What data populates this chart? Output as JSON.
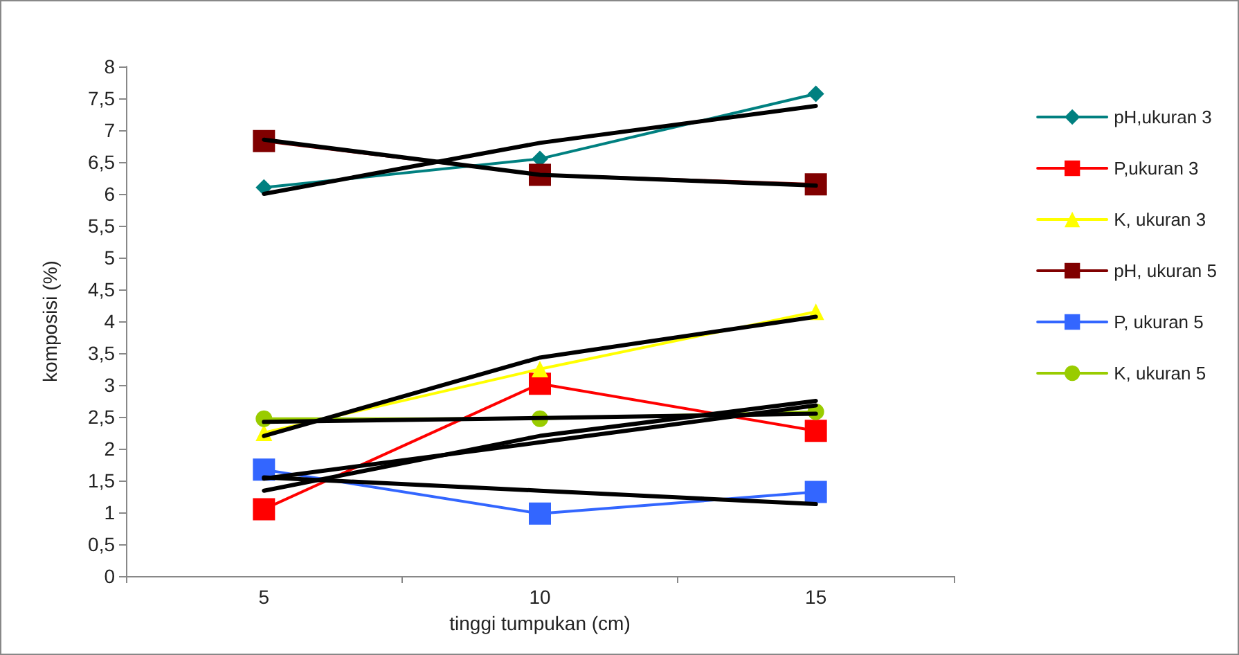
{
  "chart_data": {
    "type": "line",
    "xlabel": "tinggi tumpukan (cm)",
    "ylabel": "komposisi (%)",
    "categories": [
      "5",
      "10",
      "15"
    ],
    "ylim": [
      0,
      8
    ],
    "yticks": [
      0,
      {
        "value": 0.5,
        "label": "0,5"
      },
      1,
      {
        "value": 1.5,
        "label": "1,5"
      },
      2,
      {
        "value": 2.5,
        "label": "2,5"
      },
      3,
      {
        "value": 3.5,
        "label": "3,5"
      },
      4,
      {
        "value": 4.5,
        "label": "4,5"
      },
      5,
      {
        "value": 5.5,
        "label": "5,5"
      },
      6,
      {
        "value": 6.5,
        "label": "6,5"
      },
      7,
      {
        "value": 7.5,
        "label": "7,5"
      },
      8
    ],
    "grid": false,
    "legend": "right",
    "series": [
      {
        "name": "pH,ukuran 3",
        "color": "#008080",
        "marker": "diamond",
        "values": [
          6.1,
          6.55,
          7.57
        ]
      },
      {
        "name": "P,ukuran 3",
        "color": "#ff0000",
        "marker": "square",
        "values": [
          1.05,
          3.02,
          2.28
        ]
      },
      {
        "name": "K, ukuran 3",
        "color": "#ffff00",
        "marker": "triangle",
        "values": [
          2.25,
          3.25,
          4.15
        ]
      },
      {
        "name": "pH, ukuran 5",
        "color": "#800000",
        "marker": "square",
        "values": [
          6.83,
          6.3,
          6.15
        ]
      },
      {
        "name": "P, ukuran 5",
        "color": "#3366ff",
        "marker": "square",
        "values": [
          1.67,
          0.98,
          1.32
        ]
      },
      {
        "name": "K, ukuran 5",
        "color": "#99cc00",
        "marker": "circle",
        "values": [
          2.47,
          2.47,
          2.58
        ]
      },
      {
        "color": "#000000",
        "marker": "none",
        "values": [
          6.0,
          6.8,
          7.38
        ]
      },
      {
        "color": "#000000",
        "marker": "none",
        "values": [
          6.85,
          6.3,
          6.13
        ]
      },
      {
        "color": "#000000",
        "marker": "none",
        "values": [
          2.2,
          3.43,
          4.07
        ]
      },
      {
        "color": "#000000",
        "marker": "none",
        "values": [
          2.42,
          2.48,
          2.55
        ]
      },
      {
        "color": "#000000",
        "marker": "none",
        "values": [
          1.34,
          2.2,
          2.75
        ]
      },
      {
        "color": "#000000",
        "marker": "none",
        "values": [
          1.53,
          2.1,
          2.68
        ]
      },
      {
        "color": "#000000",
        "marker": "none",
        "values": [
          1.55,
          1.34,
          1.13
        ]
      }
    ]
  }
}
